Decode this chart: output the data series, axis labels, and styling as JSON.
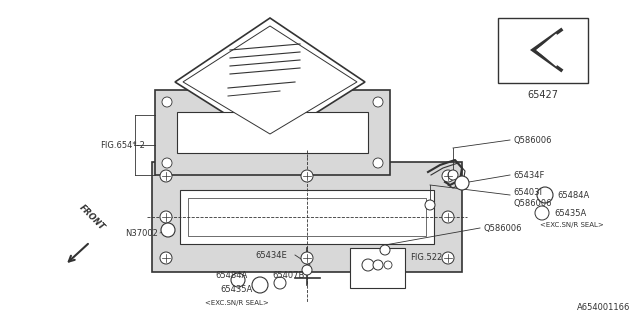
{
  "bg_color": "#ffffff",
  "line_color": "#333333",
  "frame_fill": "#d8d8d8",
  "part_number": "A654001166",
  "labels": {
    "FIG654": "FIG.654*-2",
    "N37002": "N37002",
    "65434E": "65434E",
    "65484A_bot": "65484A",
    "65435A_bot": "65435A",
    "exc_bot": "<EXC.SN/R SEAL>",
    "65407B": "65407B",
    "FIG522": "FIG.522",
    "Q586006_top": "Q586006",
    "65434F": "65434F",
    "65403I": "65403I",
    "Q586006_mid": "Q586006",
    "Q586006_bot": "Q586006",
    "65484A_right": "65484A",
    "65435A_right": "65435A",
    "exc_right": "<EXC.SN/R SEAL>",
    "65427": "65427",
    "FRONT": "FRONT"
  }
}
